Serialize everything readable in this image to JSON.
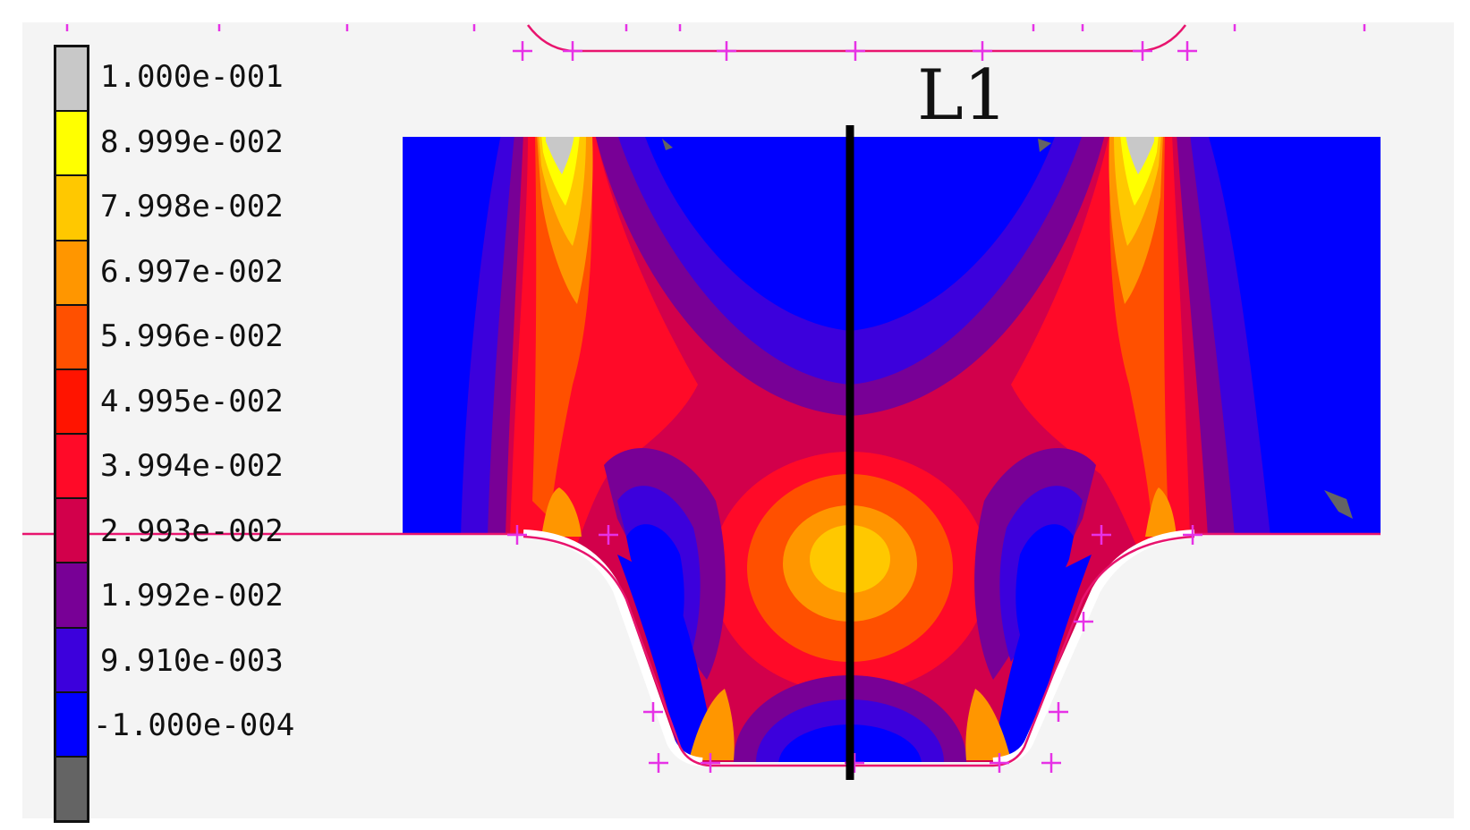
{
  "legend": {
    "labels": [
      "1.000e-001",
      "8.999e-002",
      "7.998e-002",
      "6.997e-002",
      "5.996e-002",
      "4.995e-002",
      "3.994e-002",
      "2.993e-002",
      "1.992e-002",
      "9.910e-003",
      "-1.000e-004"
    ],
    "colors": [
      "#c8c8c8",
      "#ffff00",
      "#ffc800",
      "#ff9600",
      "#ff5000",
      "#ff1400",
      "#ff0a28",
      "#d2004b",
      "#780096",
      "#3c00dc",
      "#0000ff",
      "#646464"
    ]
  },
  "line_label": "L1",
  "colors": {
    "boundary_line": "#e8146e",
    "marker": "#e632e6",
    "section_line": "#000000"
  }
}
